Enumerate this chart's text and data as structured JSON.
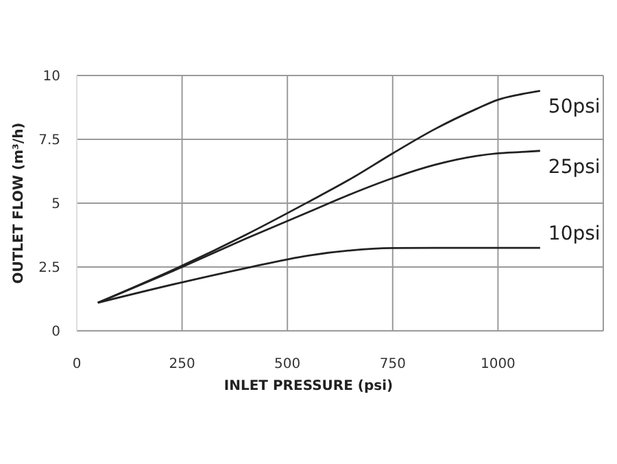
{
  "chart_data": {
    "type": "line",
    "xlabel": "INLET PRESSURE (psi)",
    "ylabel": "OUTLET FLOW (m³/h)",
    "x": [
      50,
      250,
      400,
      550,
      650,
      750,
      850,
      950,
      1000,
      1050,
      1100
    ],
    "series": [
      {
        "name": "50psi",
        "color": "#222222",
        "values": [
          1.1,
          2.55,
          3.75,
          5.05,
          5.95,
          6.95,
          7.9,
          8.7,
          9.05,
          9.25,
          9.4
        ]
      },
      {
        "name": "25psi",
        "color": "#222222",
        "values": [
          1.1,
          2.5,
          3.6,
          4.65,
          5.35,
          5.98,
          6.5,
          6.85,
          6.95,
          7.0,
          7.05
        ]
      },
      {
        "name": "10psi",
        "color": "#222222",
        "values": [
          1.1,
          1.9,
          2.45,
          2.95,
          3.15,
          3.24,
          3.25,
          3.25,
          3.25,
          3.25,
          3.25
        ]
      }
    ],
    "xlim": [
      0,
      1250
    ],
    "xticks": [
      0,
      250,
      500,
      750,
      1000,
      {
        "value": 1250,
        "label": null
      }
    ],
    "ylim": [
      0,
      10
    ],
    "yticks": [
      0,
      2.5,
      5,
      7.5,
      10
    ],
    "grid": true,
    "legend": false,
    "marker": "none",
    "line_style": "solid"
  }
}
